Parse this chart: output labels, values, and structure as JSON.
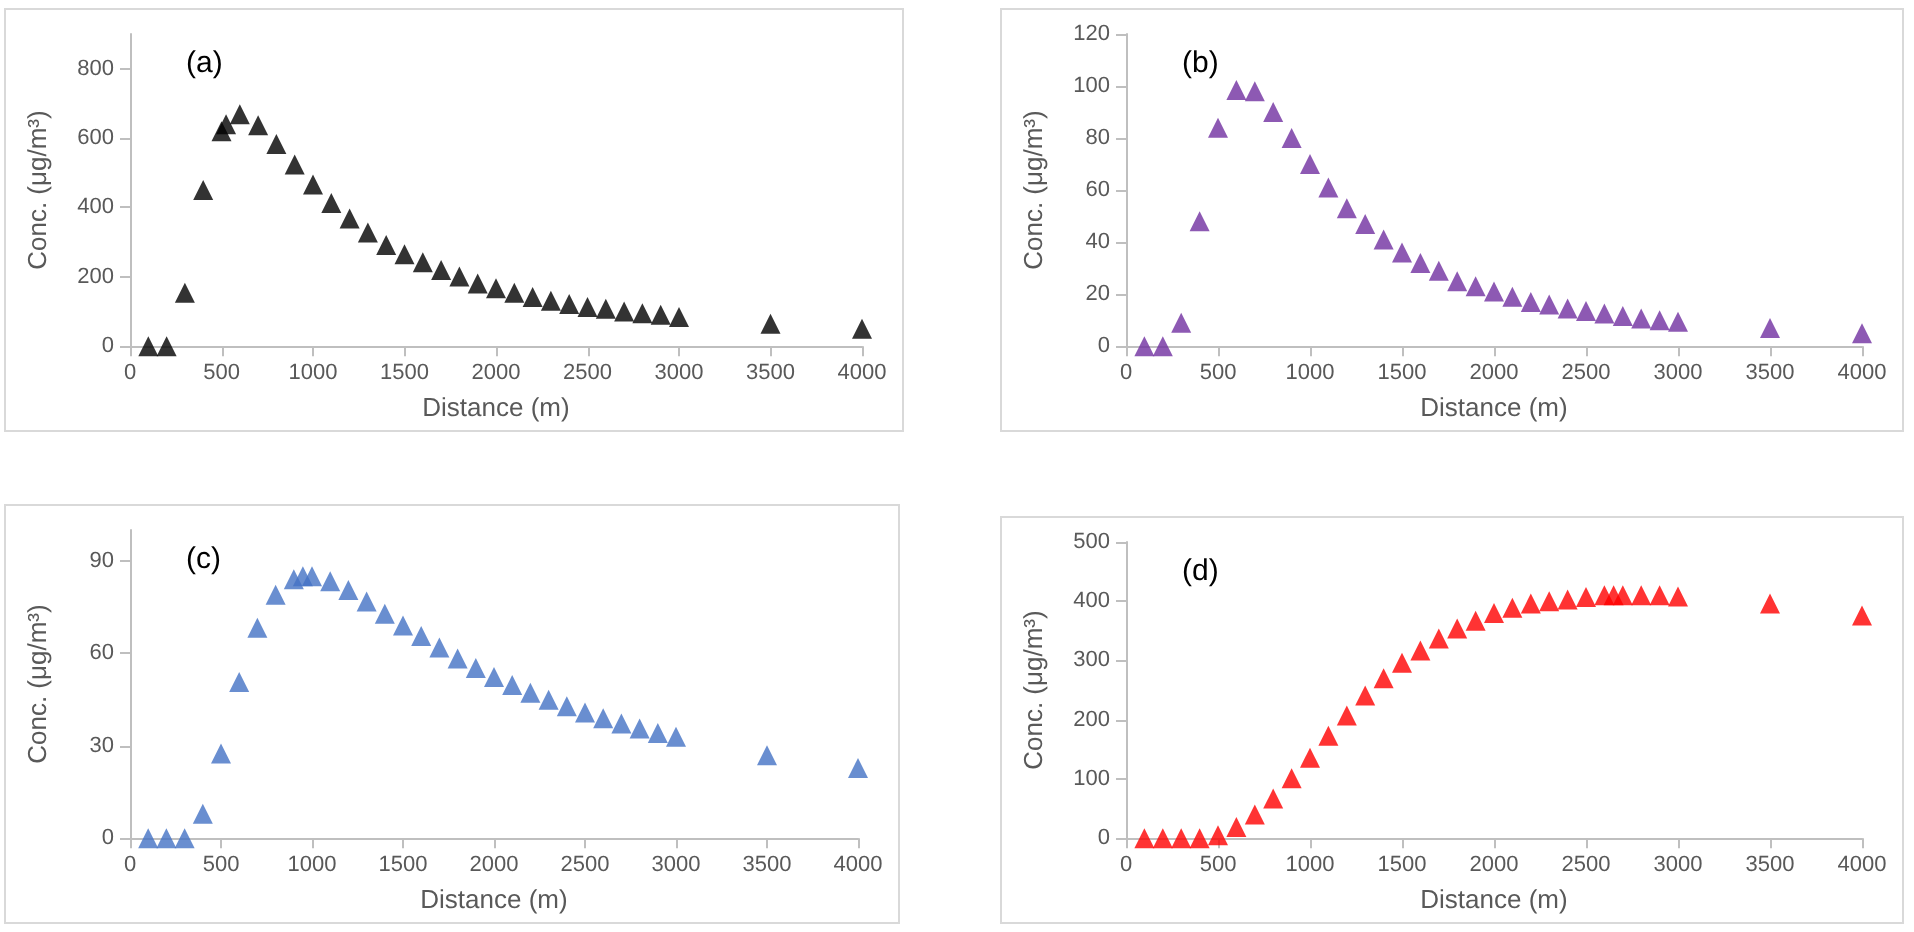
{
  "chart_data": [
    {
      "type": "scatter",
      "title": "(a)",
      "xlabel": "Distance (m)",
      "ylabel": "Conc. (μg/m³)",
      "marker": "triangle",
      "grid": false,
      "xlim": [
        0,
        4000
      ],
      "xticks": [
        0,
        500,
        1000,
        1500,
        2000,
        2500,
        3000,
        3500,
        4000
      ],
      "ylim": [
        0,
        900
      ],
      "yticks": [
        0,
        200,
        400,
        600,
        800
      ],
      "x": [
        100,
        200,
        300,
        400,
        500,
        525,
        600,
        700,
        800,
        900,
        1000,
        1100,
        1200,
        1300,
        1400,
        1500,
        1600,
        1700,
        1800,
        1900,
        2000,
        2100,
        2200,
        2300,
        2400,
        2500,
        2600,
        2700,
        2800,
        2900,
        3000,
        3500,
        4000
      ],
      "series": [
        {
          "color": "#000000",
          "values": [
            0,
            0,
            154,
            450,
            620,
            640,
            669,
            637,
            583,
            524,
            466,
            413,
            368,
            328,
            292,
            265,
            242,
            220,
            201,
            181,
            167,
            154,
            142,
            131,
            122,
            113,
            108,
            100,
            95,
            91,
            84,
            65,
            50
          ]
        }
      ]
    },
    {
      "type": "scatter",
      "title": "(b)",
      "xlabel": "Distance (m)",
      "ylabel": "Conc. (μg/m³)",
      "marker": "triangle",
      "grid": false,
      "xlim": [
        0,
        4000
      ],
      "xticks": [
        0,
        500,
        1000,
        1500,
        2000,
        2500,
        3000,
        3500,
        4000
      ],
      "ylim": [
        0,
        120
      ],
      "yticks": [
        0,
        20,
        40,
        60,
        80,
        100,
        120
      ],
      "x": [
        100,
        200,
        300,
        400,
        500,
        600,
        700,
        800,
        900,
        1000,
        1100,
        1200,
        1300,
        1400,
        1500,
        1600,
        1700,
        1800,
        1900,
        2000,
        2100,
        2200,
        2300,
        2400,
        2500,
        2600,
        2700,
        2800,
        2900,
        3000,
        3500,
        4000
      ],
      "series": [
        {
          "color": "#7030a0",
          "values": [
            0,
            0,
            9,
            48,
            84,
            98.5,
            98,
            90,
            80,
            70,
            61,
            53,
            47,
            41,
            36,
            32,
            29,
            25,
            23,
            21,
            19,
            17,
            16,
            14.5,
            13.5,
            12.6,
            11.6,
            10.6,
            10,
            9.4,
            7,
            5
          ]
        }
      ]
    },
    {
      "type": "scatter",
      "title": "(c)",
      "xlabel": "Distance (m)",
      "ylabel": "Conc. (μg/m³)",
      "marker": "triangle",
      "grid": false,
      "xlim": [
        0,
        4000
      ],
      "xticks": [
        0,
        500,
        1000,
        1500,
        2000,
        2500,
        3000,
        3500,
        4000
      ],
      "ylim": [
        0,
        100
      ],
      "yticks": [
        0,
        30,
        60,
        90
      ],
      "x": [
        100,
        200,
        300,
        400,
        500,
        600,
        700,
        800,
        900,
        950,
        1000,
        1100,
        1200,
        1300,
        1400,
        1500,
        1600,
        1700,
        1800,
        1900,
        2000,
        2100,
        2200,
        2300,
        2400,
        2500,
        2600,
        2700,
        2800,
        2900,
        3000,
        3500,
        4000
      ],
      "series": [
        {
          "color": "#4472c4",
          "values": [
            0,
            0,
            0,
            7.9,
            27.5,
            50.7,
            68.3,
            79,
            84,
            85,
            85,
            83.4,
            80.5,
            76.8,
            72.8,
            69,
            65.6,
            61.9,
            58.3,
            55.2,
            52.3,
            49.7,
            47.2,
            44.9,
            42.8,
            40.8,
            38.9,
            37.2,
            35.6,
            34.1,
            32.9,
            26.9,
            22.8
          ]
        }
      ]
    },
    {
      "type": "scatter",
      "title": "(d)",
      "xlabel": "Distance (m)",
      "ylabel": "Conc. (μg/m³)",
      "marker": "triangle",
      "grid": false,
      "xlim": [
        0,
        4000
      ],
      "xticks": [
        0,
        500,
        1000,
        1500,
        2000,
        2500,
        3000,
        3500,
        4000
      ],
      "ylim": [
        0,
        500
      ],
      "yticks": [
        0,
        100,
        200,
        300,
        400,
        500
      ],
      "x": [
        100,
        200,
        300,
        400,
        500,
        600,
        700,
        800,
        900,
        1000,
        1100,
        1200,
        1300,
        1400,
        1500,
        1600,
        1700,
        1800,
        1900,
        2000,
        2100,
        2200,
        2300,
        2400,
        2500,
        2600,
        2650,
        2700,
        2800,
        2900,
        3000,
        3500,
        4000
      ],
      "series": [
        {
          "color": "#ff0000",
          "values": [
            0,
            0,
            0,
            0,
            5,
            19,
            40,
            67,
            101,
            136,
            173,
            207,
            241,
            270,
            296,
            317,
            337,
            354,
            367,
            380,
            389,
            396,
            400,
            403,
            407,
            410,
            410,
            410,
            410,
            410,
            408,
            396,
            376
          ]
        }
      ]
    }
  ]
}
